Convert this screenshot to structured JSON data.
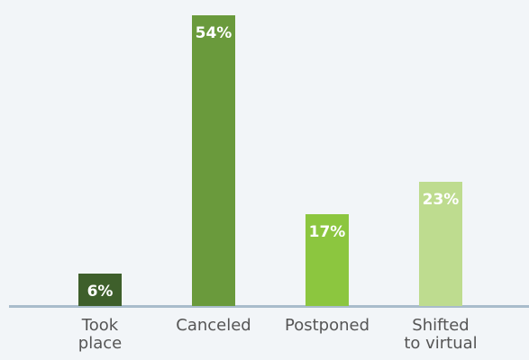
{
  "chart_data": {
    "type": "bar",
    "categories": [
      "Took\nplace",
      "Canceled",
      "Postponed",
      "Shifted\nto virtual"
    ],
    "values": [
      6,
      54,
      17,
      23
    ],
    "value_labels": [
      "6%",
      "54%",
      "17%",
      "23%"
    ],
    "colors": [
      "#3e5f2b",
      "#6a9a3c",
      "#8cc63f",
      "#bedc8f"
    ]
  }
}
